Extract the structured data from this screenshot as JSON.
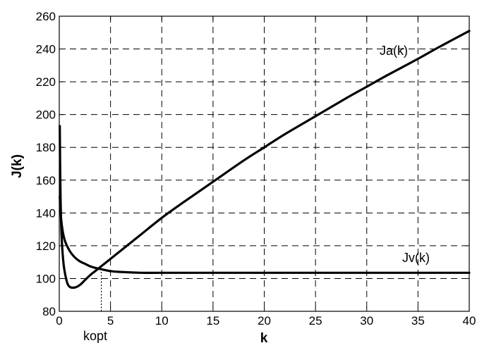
{
  "chart_data": {
    "type": "line",
    "title": "",
    "xlabel": "k",
    "ylabel": "J(k)",
    "xlim": [
      0,
      40
    ],
    "ylim": [
      80,
      260
    ],
    "xticks": [
      0,
      5,
      10,
      15,
      20,
      25,
      30,
      35,
      40
    ],
    "yticks": [
      80,
      100,
      120,
      140,
      160,
      180,
      200,
      220,
      240,
      260
    ],
    "grid": true,
    "series": [
      {
        "name": "Ja(k)",
        "x": [
          0.05,
          0.1,
          0.2,
          0.4,
          0.7,
          1.0,
          1.5,
          2.0,
          2.5,
          3.0,
          3.5,
          4.0,
          5,
          6,
          7,
          8,
          10,
          12,
          15,
          18,
          20,
          22,
          25,
          28,
          30,
          32,
          35,
          37,
          40
        ],
        "values": [
          193,
          160,
          130,
          110,
          99,
          95,
          94.5,
          96,
          99,
          102,
          104.5,
          107,
          112,
          117,
          122,
          127,
          137,
          146,
          159,
          172,
          180,
          188,
          199,
          210,
          217,
          224,
          234,
          241,
          251
        ]
      },
      {
        "name": "Jv(k)",
        "x": [
          0.05,
          0.2,
          0.5,
          1.0,
          1.5,
          2.0,
          2.5,
          3.0,
          3.5,
          4.0,
          5,
          6,
          8,
          10,
          15,
          20,
          25,
          30,
          35,
          40
        ],
        "values": [
          150,
          135,
          124,
          117,
          113,
          110.5,
          109,
          107.5,
          106.5,
          105.8,
          104.5,
          104,
          103.5,
          103.5,
          103.5,
          103.5,
          103.5,
          103.5,
          103.5,
          103.5
        ]
      }
    ],
    "annotations": {
      "kopt_label": "kopt",
      "kopt_x": 4.1,
      "kopt_y": 106
    }
  }
}
